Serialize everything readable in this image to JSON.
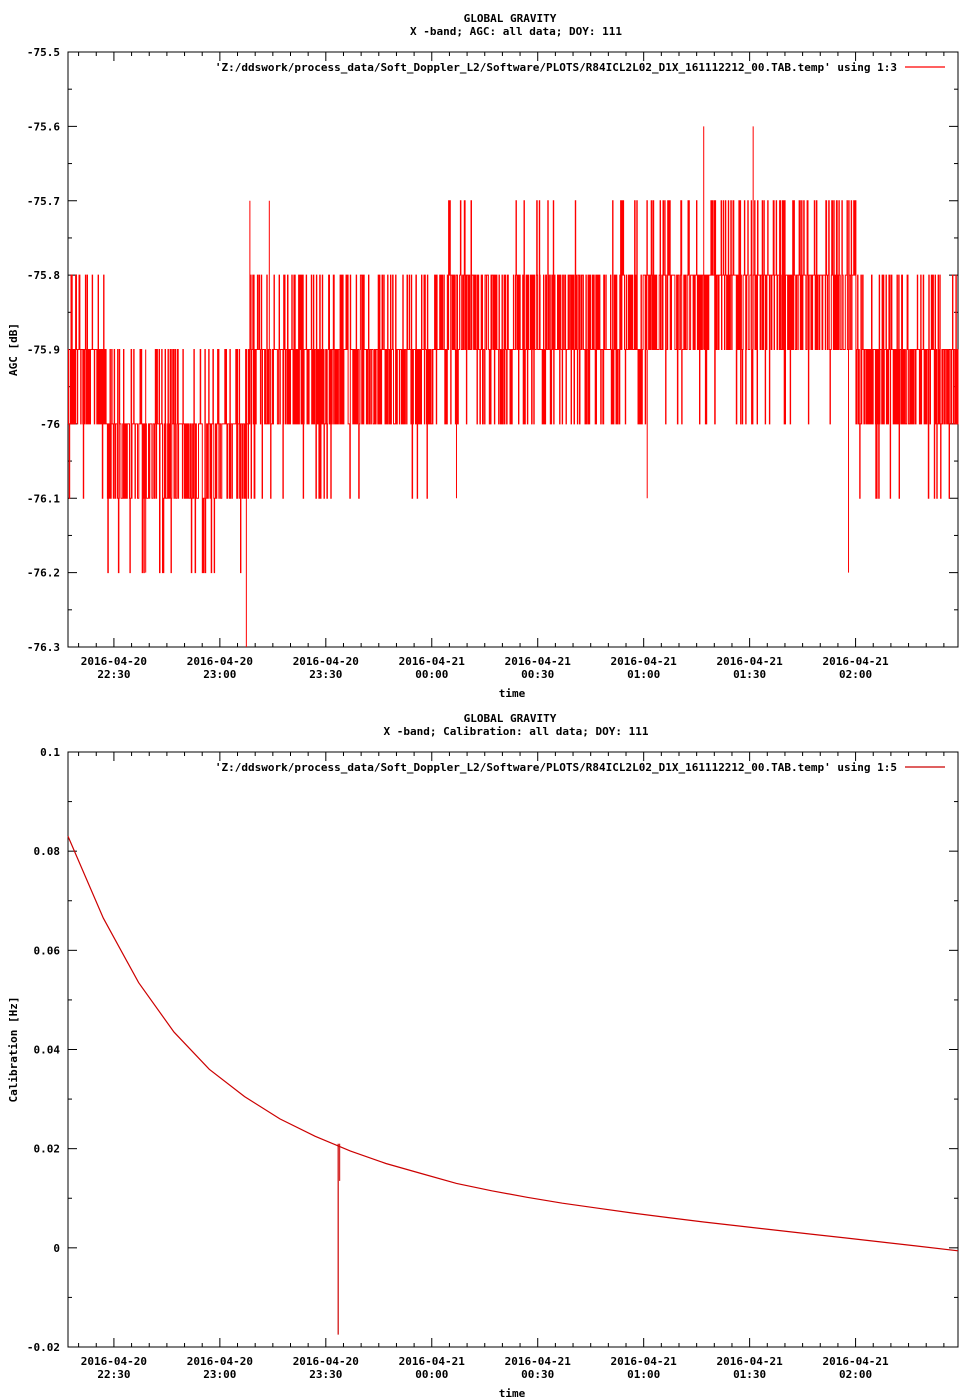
{
  "chart_data": [
    {
      "type": "line",
      "title": "GLOBAL GRAVITY",
      "subtitle": "X -band; AGC: all data; DOY: 111",
      "xlabel": "time",
      "ylabel": "AGC [dB]",
      "ylim": [
        -76.3,
        -75.5
      ],
      "y_ticks": [
        "-75.5",
        "-75.6",
        "-75.7",
        "-75.8",
        "-75.9",
        "-76",
        "-76.1",
        "-76.2",
        "-76.3"
      ],
      "x_range_minutes": [
        1337,
        1589
      ],
      "x_tick_minutes": [
        1350,
        1380,
        1410,
        1440,
        1470,
        1500,
        1530,
        1560
      ],
      "x_tick_dates": [
        "2016-04-20",
        "2016-04-20",
        "2016-04-20",
        "2016-04-21",
        "2016-04-21",
        "2016-04-21",
        "2016-04-21",
        "2016-04-21"
      ],
      "x_tick_times": [
        "22:30",
        "23:00",
        "23:30",
        "00:00",
        "00:30",
        "01:00",
        "01:30",
        "02:00"
      ],
      "grid": false,
      "legend_position": "top-right",
      "color": "#ff0000",
      "series": [
        {
          "name": "'Z:/ddswork/process_data/Soft_Doppler_L2/Software/PLOTS/R84ICL2L02_D1X_161112212_00.TAB.temp' using 1:3",
          "baseline_by_segment": [
            {
              "from_minute": 1337,
              "to_minute": 1348,
              "values": [
                -75.9,
                -76.0,
                -75.8,
                -76.1
              ]
            },
            {
              "from_minute": 1348,
              "to_minute": 1388,
              "values": [
                -76.0,
                -76.1,
                -75.9,
                -76.2
              ]
            },
            {
              "from_minute": 1388,
              "to_minute": 1440,
              "values": [
                -75.9,
                -76.0,
                -75.8,
                -76.1
              ]
            },
            {
              "from_minute": 1440,
              "to_minute": 1500,
              "values": [
                -75.9,
                -75.8,
                -76.0,
                -75.7
              ]
            },
            {
              "from_minute": 1500,
              "to_minute": 1560,
              "values": [
                -75.8,
                -75.9,
                -75.7,
                -76.0
              ]
            },
            {
              "from_minute": 1560,
              "to_minute": 1589,
              "values": [
                -75.9,
                -76.0,
                -75.8,
                -76.1
              ]
            }
          ],
          "spikes": [
            {
              "minute": 1387.5,
              "value": -76.3
            },
            {
              "minute": 1388.5,
              "value": -75.7
            },
            {
              "minute": 1394,
              "value": -75.7
            },
            {
              "minute": 1517,
              "value": -75.6
            },
            {
              "minute": 1531,
              "value": -75.6
            },
            {
              "minute": 1558,
              "value": -76.2
            },
            {
              "minute": 1359,
              "value": -76.2
            },
            {
              "minute": 1501,
              "value": -76.1
            },
            {
              "minute": 1447,
              "value": -76.1
            }
          ]
        }
      ]
    },
    {
      "type": "line",
      "title": "GLOBAL GRAVITY",
      "subtitle": "X -band; Calibration: all data; DOY: 111",
      "xlabel": "time",
      "ylabel": "Calibration [Hz]",
      "ylim": [
        -0.02,
        0.1
      ],
      "y_ticks": [
        "0.1",
        "0.08",
        "0.06",
        "0.04",
        "0.02",
        "0",
        "-0.02"
      ],
      "x_range_minutes": [
        1337,
        1589
      ],
      "x_tick_minutes": [
        1350,
        1380,
        1410,
        1440,
        1470,
        1500,
        1530,
        1560
      ],
      "x_tick_dates": [
        "2016-04-20",
        "2016-04-20",
        "2016-04-20",
        "2016-04-21",
        "2016-04-21",
        "2016-04-21",
        "2016-04-21",
        "2016-04-21"
      ],
      "x_tick_times": [
        "22:30",
        "23:00",
        "23:30",
        "00:00",
        "00:30",
        "01:00",
        "01:30",
        "02:00"
      ],
      "grid": false,
      "legend_position": "top-right",
      "color": "#cc0000",
      "series": [
        {
          "name": "'Z:/ddswork/process_data/Soft_Doppler_L2/Software/PLOTS/R84ICL2L02_D1X_161112212_00.TAB.temp' using 1:5",
          "x_minutes": [
            1337,
            1347,
            1357,
            1367,
            1377,
            1387,
            1397,
            1407,
            1417,
            1427,
            1437,
            1447,
            1457,
            1467,
            1477,
            1487,
            1497,
            1507,
            1517,
            1527,
            1537,
            1547,
            1557,
            1567,
            1577,
            1589
          ],
          "y": [
            0.083,
            0.0665,
            0.0535,
            0.0435,
            0.036,
            0.0305,
            0.026,
            0.0225,
            0.0195,
            0.017,
            0.015,
            0.013,
            0.0115,
            0.0102,
            0.009,
            0.008,
            0.007,
            0.0061,
            0.0052,
            0.0044,
            0.0036,
            0.0028,
            0.002,
            0.0012,
            0.0004,
            -0.0006
          ],
          "spikes": [
            {
              "minute": 1413.5,
              "values": [
                0.021,
                0.0135,
                -0.0175
              ]
            }
          ]
        }
      ]
    }
  ]
}
